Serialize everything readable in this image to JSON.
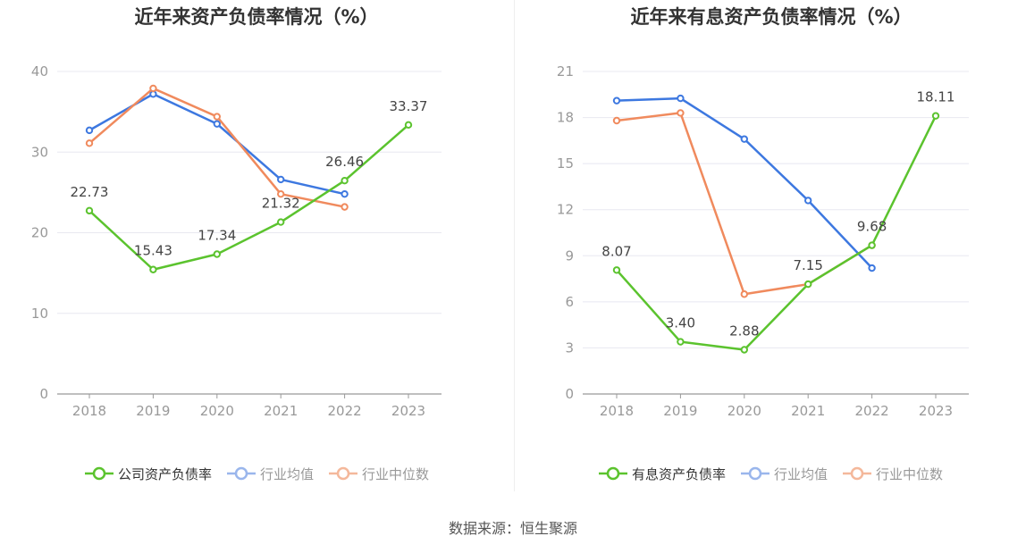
{
  "source_text": "数据来源：恒生聚源",
  "colors": {
    "company": "#5bc32e",
    "avg": "#3d78e0",
    "median": "#f08a5d",
    "grid": "#e8e8f0",
    "axis": "#999999"
  },
  "chart_data": [
    {
      "type": "line",
      "title": "近年来资产负债率情况（%）",
      "categories": [
        "2018",
        "2019",
        "2020",
        "2021",
        "2022",
        "2023"
      ],
      "ylim": [
        0,
        40
      ],
      "yticks": [
        0,
        10,
        20,
        30,
        40
      ],
      "grid": true,
      "legend_position": "bottom",
      "series": [
        {
          "name": "公司资产负债率",
          "key": "company",
          "values": [
            22.73,
            15.43,
            17.34,
            21.32,
            26.46,
            33.37
          ],
          "labels": [
            "22.73",
            "15.43",
            "17.34",
            "21.32",
            "26.46",
            "33.37"
          ]
        },
        {
          "name": "行业均值",
          "key": "avg",
          "values": [
            32.7,
            37.2,
            33.5,
            26.6,
            24.8,
            null
          ]
        },
        {
          "name": "行业中位数",
          "key": "median",
          "values": [
            31.1,
            37.9,
            34.4,
            24.8,
            23.2,
            null
          ]
        }
      ]
    },
    {
      "type": "line",
      "title": "近年来有息资产负债率情况（%）",
      "categories": [
        "2018",
        "2019",
        "2020",
        "2021",
        "2022",
        "2023"
      ],
      "ylim": [
        0,
        21
      ],
      "yticks": [
        0,
        3,
        6,
        9,
        12,
        15,
        18,
        21
      ],
      "grid": true,
      "legend_position": "bottom",
      "series": [
        {
          "name": "有息资产负债率",
          "key": "company",
          "values": [
            8.07,
            3.4,
            2.88,
            7.15,
            9.68,
            18.11
          ],
          "labels": [
            "8.07",
            "3.40",
            "2.88",
            "7.15",
            "9.68",
            "18.11"
          ]
        },
        {
          "name": "行业均值",
          "key": "avg",
          "values": [
            19.1,
            19.25,
            16.6,
            12.6,
            8.2,
            null
          ]
        },
        {
          "name": "行业中位数",
          "key": "median",
          "values": [
            17.8,
            18.3,
            6.5,
            7.15,
            9.68,
            null
          ]
        }
      ]
    }
  ]
}
